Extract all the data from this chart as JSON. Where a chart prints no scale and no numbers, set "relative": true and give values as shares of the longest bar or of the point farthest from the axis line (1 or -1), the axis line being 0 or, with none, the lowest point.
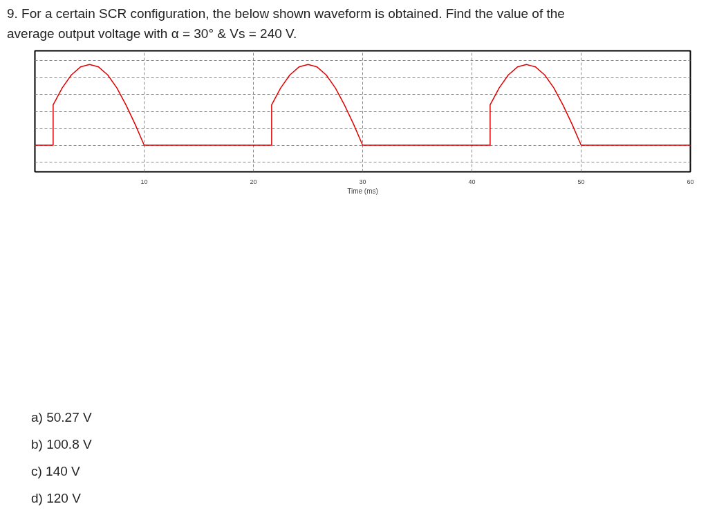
{
  "chart_data": {
    "type": "line",
    "title": "9. For a certain SCR configuration, the below shown waveform is obtained. Find the value of the average output voltage with α = 30° & Vs = 240 V.",
    "xlabel": "Time (ms)",
    "relative": true,
    "x": [
      0,
      1.67,
      1.67,
      2.5,
      3.33,
      4.17,
      5,
      5.83,
      6.67,
      7.5,
      8.33,
      9.17,
      10,
      21.67,
      21.67,
      22.5,
      23.33,
      24.17,
      25,
      25.83,
      26.67,
      27.5,
      28.33,
      29.17,
      30,
      41.67,
      41.67,
      42.5,
      43.33,
      44.17,
      45,
      45.83,
      46.67,
      47.5,
      48.33,
      49.17,
      50,
      60
    ],
    "series": [
      {
        "color": "#e00000",
        "values": [
          0,
          0,
          0.5,
          0.71,
          0.87,
          0.97,
          1,
          0.97,
          0.87,
          0.71,
          0.5,
          0.26,
          0,
          0,
          0.5,
          0.71,
          0.87,
          0.97,
          1,
          0.97,
          0.87,
          0.71,
          0.5,
          0.26,
          0,
          0,
          0.5,
          0.71,
          0.87,
          0.97,
          1,
          0.97,
          0.87,
          0.71,
          0.5,
          0.26,
          0,
          0
        ]
      }
    ],
    "xlim": [
      0,
      60
    ],
    "xticks": [
      10,
      20,
      30,
      40,
      50,
      60
    ],
    "grid": true,
    "marker": "none",
    "line_style": "solid",
    "annotations": [
      "a) 50.27 V",
      "b) 100.8 V",
      "c) 140 V",
      "d) 120 V"
    ]
  }
}
